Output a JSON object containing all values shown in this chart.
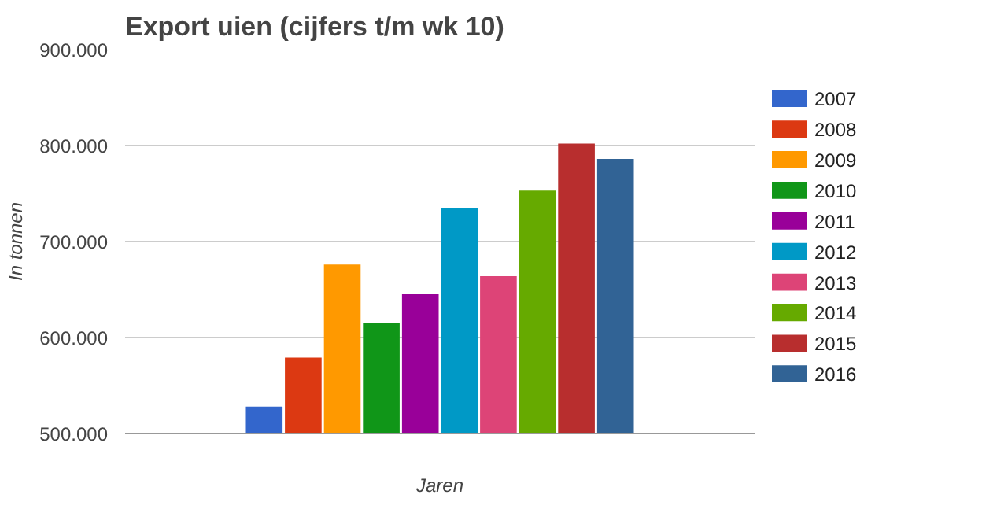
{
  "chart_data": {
    "type": "bar",
    "title": "Export uien (cijfers t/m wk 10)",
    "xlabel": "Jaren",
    "ylabel": "In tonnen",
    "categories": [
      null
    ],
    "series": [
      {
        "name": "2007",
        "color": "#3366cc",
        "values": [
          528000
        ]
      },
      {
        "name": "2008",
        "color": "#dc3912",
        "values": [
          579000
        ]
      },
      {
        "name": "2009",
        "color": "#ff9900",
        "values": [
          676000
        ]
      },
      {
        "name": "2010",
        "color": "#109618",
        "values": [
          615000
        ]
      },
      {
        "name": "2011",
        "color": "#990099",
        "values": [
          645000
        ]
      },
      {
        "name": "2012",
        "color": "#0099c6",
        "values": [
          735000
        ]
      },
      {
        "name": "2013",
        "color": "#dd4477",
        "values": [
          664000
        ]
      },
      {
        "name": "2014",
        "color": "#66aa00",
        "values": [
          753000
        ]
      },
      {
        "name": "2015",
        "color": "#b82e2e",
        "values": [
          802000
        ]
      },
      {
        "name": "2016",
        "color": "#316395",
        "values": [
          786000
        ]
      }
    ],
    "ylim": [
      500000,
      900000
    ],
    "yticks": [
      {
        "value": 500000,
        "label": "500.000"
      },
      {
        "value": 600000,
        "label": "600.000"
      },
      {
        "value": 700000,
        "label": "700.000"
      },
      {
        "value": 800000,
        "label": "800.000"
      },
      {
        "value": 900000,
        "label": "900.000"
      }
    ],
    "grid": "y",
    "legend": "right",
    "tick_labels": "y"
  }
}
